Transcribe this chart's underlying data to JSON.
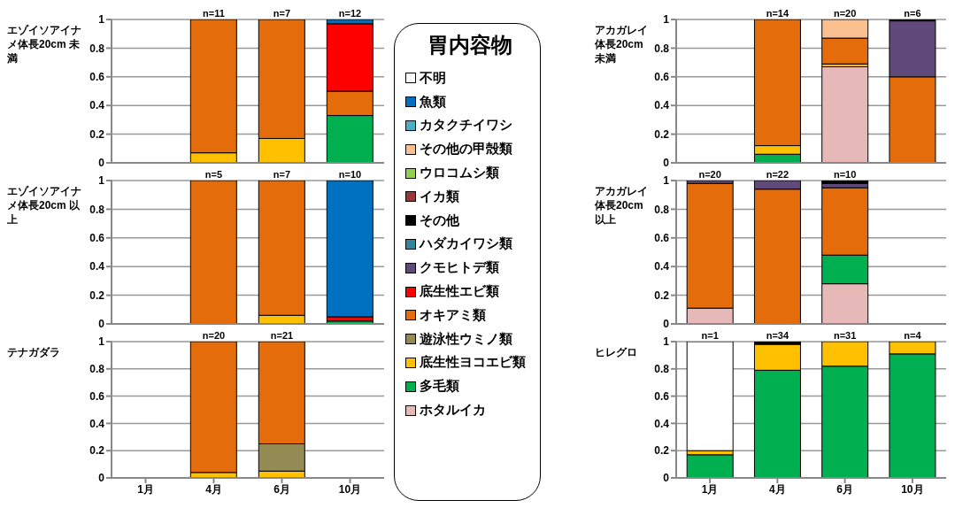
{
  "chart_data": [
    {
      "type": "bar",
      "stacked": true,
      "title": "エゾイソアイナメ体長20cm 未満",
      "categories": [
        "1月",
        "4月",
        "6月",
        "10月"
      ],
      "ylim": [
        0,
        1
      ],
      "yticks": [
        0,
        0.2,
        0.4,
        0.6,
        0.8,
        1
      ],
      "grid": "y",
      "tick_labels": "y",
      "legend": "right",
      "legend_title": "胃内容物",
      "annotations": [
        {
          "text": "n=11",
          "x": "4月",
          "y": 1
        },
        {
          "text": "n=7",
          "x": "6月",
          "y": 1
        },
        {
          "text": "n=12",
          "x": "10月",
          "y": 1
        }
      ],
      "series": [
        {
          "name": "ホタルイカ",
          "color": "#e6b9b8",
          "values": [
            null,
            null,
            null,
            null
          ]
        },
        {
          "name": "多毛類",
          "color": "#00b050",
          "values": [
            null,
            null,
            null,
            0.33
          ]
        },
        {
          "name": "底生性ヨコエビ類",
          "color": "#ffc000",
          "values": [
            null,
            0.07,
            0.17,
            null
          ]
        },
        {
          "name": "遊泳性ウミノ類",
          "color": "#948a54",
          "values": [
            null,
            null,
            null,
            null
          ]
        },
        {
          "name": "オキアミ類",
          "color": "#e46c0a",
          "values": [
            null,
            0.93,
            0.83,
            0.17
          ]
        },
        {
          "name": "底生性エビ類",
          "color": "#ff0000",
          "values": [
            null,
            null,
            null,
            0.47
          ]
        },
        {
          "name": "クモヒトデ類",
          "color": "#604a7b",
          "values": [
            null,
            null,
            null,
            null
          ]
        },
        {
          "name": "ハダカイワシ類",
          "color": "#31859c",
          "values": [
            null,
            null,
            null,
            null
          ]
        },
        {
          "name": "その他",
          "color": "#000000",
          "values": [
            null,
            null,
            null,
            null
          ]
        },
        {
          "name": "イカ類",
          "color": "#953735",
          "values": [
            null,
            null,
            null,
            null
          ]
        },
        {
          "name": "ウロコムシ類",
          "color": "#92d050",
          "values": [
            null,
            null,
            null,
            null
          ]
        },
        {
          "name": "その他の甲殻類",
          "color": "#fac090",
          "values": [
            null,
            null,
            null,
            null
          ]
        },
        {
          "name": "カタクチイワシ",
          "color": "#4bacc6",
          "values": [
            null,
            null,
            null,
            null
          ]
        },
        {
          "name": "魚類",
          "color": "#0070c0",
          "values": [
            null,
            null,
            null,
            0.03
          ]
        },
        {
          "name": "不明",
          "color": "#ffffff",
          "values": [
            null,
            null,
            null,
            null
          ]
        }
      ]
    },
    {
      "type": "bar",
      "stacked": true,
      "title": "アカガレイ体長20cm 未満",
      "categories": [
        "1月",
        "4月",
        "6月",
        "10月"
      ],
      "ylim": [
        0,
        1
      ],
      "yticks": [
        0,
        0.2,
        0.4,
        0.6,
        0.8,
        1
      ],
      "grid": "y",
      "tick_labels": "y",
      "annotations": [
        {
          "text": "n=14",
          "x": "4月",
          "y": 1
        },
        {
          "text": "n=20",
          "x": "6月",
          "y": 1
        },
        {
          "text": "n=6",
          "x": "10月",
          "y": 1
        }
      ],
      "series": [
        {
          "color": "#e6b9b8",
          "values": [
            null,
            null,
            0.67,
            null
          ]
        },
        {
          "color": "#00b050",
          "values": [
            null,
            0.06,
            null,
            null
          ]
        },
        {
          "color": "#ffc000",
          "values": [
            null,
            0.06,
            0.02,
            null
          ]
        },
        {
          "color": "#e46c0a",
          "values": [
            null,
            0.88,
            0.18,
            0.6
          ]
        },
        {
          "color": "#604a7b",
          "values": [
            null,
            null,
            null,
            0.39
          ]
        },
        {
          "color": "#000000",
          "values": [
            null,
            null,
            null,
            0.01
          ]
        },
        {
          "color": "#fac090",
          "values": [
            null,
            null,
            0.13,
            null
          ]
        }
      ]
    },
    {
      "type": "bar",
      "stacked": true,
      "title": "エゾイソアイナメ体長20cm 以上",
      "categories": [
        "1月",
        "4月",
        "6月",
        "10月"
      ],
      "ylim": [
        0,
        1
      ],
      "yticks": [
        0,
        0.2,
        0.4,
        0.6,
        0.8,
        1
      ],
      "grid": "y",
      "tick_labels": "y",
      "annotations": [
        {
          "text": "n=5",
          "x": "4月",
          "y": 1
        },
        {
          "text": "n=7",
          "x": "6月",
          "y": 1
        },
        {
          "text": "n=10",
          "x": "10月",
          "y": 1
        }
      ],
      "series": [
        {
          "color": "#00b050",
          "values": [
            null,
            null,
            null,
            0.02
          ]
        },
        {
          "color": "#ffc000",
          "values": [
            null,
            null,
            0.06,
            null
          ]
        },
        {
          "color": "#e46c0a",
          "values": [
            null,
            1,
            0.94,
            null
          ]
        },
        {
          "color": "#ff0000",
          "values": [
            null,
            null,
            null,
            0.03
          ]
        },
        {
          "color": "#0070c0",
          "values": [
            null,
            null,
            null,
            0.95
          ]
        }
      ]
    },
    {
      "type": "bar",
      "stacked": true,
      "title": "アカガレイ体長20cm 以上",
      "categories": [
        "1月",
        "4月",
        "6月",
        "10月"
      ],
      "ylim": [
        0,
        1
      ],
      "yticks": [
        0,
        0.2,
        0.4,
        0.6,
        0.8,
        1
      ],
      "grid": "y",
      "tick_labels": "y",
      "annotations": [
        {
          "text": "n=20",
          "x": "1月",
          "y": 1
        },
        {
          "text": "n=22",
          "x": "4月",
          "y": 1
        },
        {
          "text": "n=10",
          "x": "6月",
          "y": 1
        }
      ],
      "series": [
        {
          "color": "#e6b9b8",
          "values": [
            0.11,
            null,
            0.28,
            null
          ]
        },
        {
          "color": "#00b050",
          "values": [
            null,
            null,
            0.2,
            null
          ]
        },
        {
          "color": "#e46c0a",
          "values": [
            0.87,
            0.94,
            0.47,
            null
          ]
        },
        {
          "color": "#604a7b",
          "values": [
            0.02,
            0.06,
            0.03,
            null
          ]
        },
        {
          "color": "#000000",
          "values": [
            null,
            null,
            0.02,
            null
          ]
        }
      ]
    },
    {
      "type": "bar",
      "stacked": true,
      "title": "テナガダラ",
      "categories": [
        "1月",
        "4月",
        "6月",
        "10月"
      ],
      "ylim": [
        0,
        1
      ],
      "yticks": [
        0,
        0.2,
        0.4,
        0.6,
        0.8,
        1
      ],
      "grid": "y",
      "annotations": [
        {
          "text": "n=20",
          "x": "4月",
          "y": 1
        },
        {
          "text": "n=21",
          "x": "6月",
          "y": 1
        }
      ],
      "series": [
        {
          "color": "#ffc000",
          "values": [
            null,
            0.04,
            0.05,
            null
          ]
        },
        {
          "color": "#948a54",
          "values": [
            null,
            null,
            0.2,
            null
          ]
        },
        {
          "color": "#e46c0a",
          "values": [
            null,
            0.96,
            0.75,
            null
          ]
        }
      ]
    },
    {
      "type": "bar",
      "stacked": true,
      "title": "ヒレグロ",
      "categories": [
        "1月",
        "4月",
        "6月",
        "10月"
      ],
      "ylim": [
        0,
        1
      ],
      "yticks": [
        0,
        0.2,
        0.4,
        0.6,
        0.8,
        1
      ],
      "grid": "y",
      "annotations": [
        {
          "text": "n=1",
          "x": "1月",
          "y": 1
        },
        {
          "text": "n=34",
          "x": "4月",
          "y": 1
        },
        {
          "text": "n=31",
          "x": "6月",
          "y": 1
        },
        {
          "text": "n=4",
          "x": "10月",
          "y": 1
        }
      ],
      "series": [
        {
          "color": "#00b050",
          "values": [
            0.17,
            0.79,
            0.82,
            0.91
          ]
        },
        {
          "color": "#ffc000",
          "values": [
            0.03,
            0.19,
            0.18,
            0.09
          ]
        },
        {
          "color": "#000000",
          "values": [
            null,
            0.02,
            null,
            null
          ]
        },
        {
          "color": "#ffffff",
          "values": [
            0.8,
            null,
            null,
            null
          ]
        }
      ]
    }
  ]
}
